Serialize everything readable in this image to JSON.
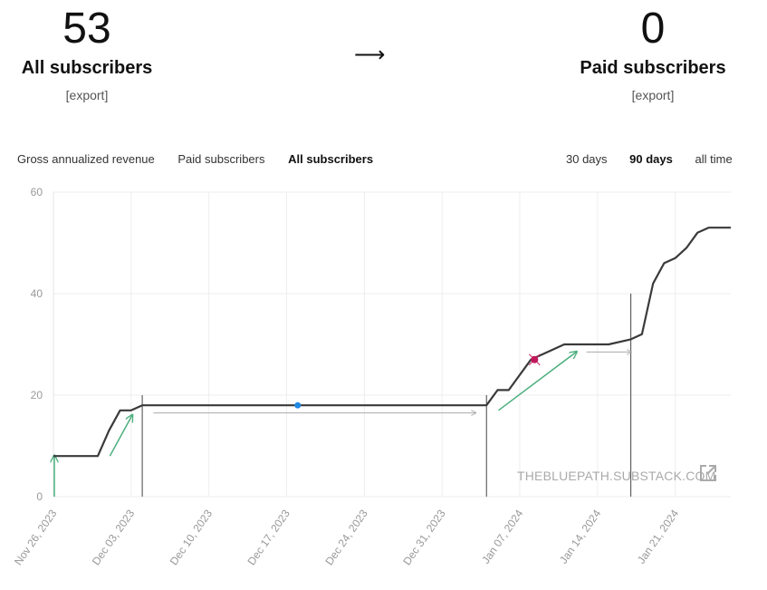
{
  "summary": {
    "left": {
      "value": "53",
      "label": "All subscribers",
      "link": "[export]"
    },
    "arrow": "⟶",
    "right": {
      "value": "0",
      "label": "Paid subscribers",
      "link": "[export]"
    }
  },
  "metric_tabs": [
    {
      "label": "Gross annualized revenue",
      "active": false
    },
    {
      "label": "Paid subscribers",
      "active": false
    },
    {
      "label": "All subscribers",
      "active": true
    }
  ],
  "range_tabs": [
    {
      "label": "30 days",
      "active": false
    },
    {
      "label": "90 days",
      "active": true
    },
    {
      "label": "all time",
      "active": false
    }
  ],
  "watermark": "THEBLUEPATH.SUBSTACK.COM",
  "icons": {
    "external_link": "external-link-icon"
  },
  "chart_data": {
    "type": "line",
    "xlabel": "",
    "ylabel": "",
    "ylim": [
      0,
      60
    ],
    "yticks": [
      0,
      20,
      40,
      60
    ],
    "x_start": "2023-11-26",
    "x_end": "2024-01-26",
    "xtick_labels": [
      "Nov 26, 2023",
      "Dec 03, 2023",
      "Dec 10, 2023",
      "Dec 17, 2023",
      "Dec 24, 2023",
      "Dec 31, 2023",
      "Jan 07, 2024",
      "Jan 14, 2024",
      "Jan 21, 2024"
    ],
    "xtick_dates": [
      "2023-11-26",
      "2023-12-03",
      "2023-12-10",
      "2023-12-17",
      "2023-12-24",
      "2023-12-31",
      "2024-01-07",
      "2024-01-14",
      "2024-01-21"
    ],
    "grid": true,
    "line_color": "#3a3a3a",
    "series": [
      {
        "x": [
          "2023-11-26",
          "2023-11-27",
          "2023-11-28",
          "2023-11-29",
          "2023-11-30",
          "2023-12-01",
          "2023-12-02",
          "2023-12-03",
          "2023-12-04",
          "2023-12-05",
          "2023-12-17",
          "2023-12-31",
          "2024-01-04",
          "2024-01-05",
          "2024-01-06",
          "2024-01-07",
          "2024-01-08",
          "2024-01-11",
          "2024-01-12",
          "2024-01-14",
          "2024-01-15",
          "2024-01-17",
          "2024-01-18",
          "2024-01-19",
          "2024-01-20",
          "2024-01-21",
          "2024-01-22",
          "2024-01-23",
          "2024-01-24",
          "2024-01-26"
        ],
        "values": [
          8,
          8,
          8,
          8,
          8,
          13,
          17,
          17,
          18,
          18,
          18,
          18,
          18,
          21,
          21,
          24,
          27,
          30,
          30,
          30,
          30,
          31,
          32,
          42,
          46,
          47,
          49,
          52,
          53,
          53
        ]
      }
    ],
    "annotations": {
      "vertical_lines": [
        "2023-12-04",
        "2024-01-04",
        "2024-01-17"
      ],
      "green_arrows": [
        {
          "from": [
            "2023-11-26",
            0
          ],
          "to": [
            "2023-11-26",
            8
          ]
        },
        {
          "from": [
            "2023-12-01",
            8
          ],
          "to": [
            "2023-12-03",
            16
          ]
        },
        {
          "from": [
            "2024-01-05",
            17
          ],
          "to": [
            "2024-01-12",
            28.5
          ]
        }
      ],
      "gray_arrows": [
        {
          "from": [
            "2023-12-05",
            16.5
          ],
          "to": [
            "2024-01-03",
            16.5
          ]
        },
        {
          "from": [
            "2024-01-13",
            28.5
          ],
          "to": [
            "2024-01-17",
            28.5
          ]
        }
      ],
      "blue_marker": {
        "date": "2023-12-18",
        "value": 18,
        "color": "#1e88e5"
      },
      "red_marker": {
        "date": "2024-01-08",
        "value": 27,
        "color": "#c2185b"
      }
    }
  }
}
